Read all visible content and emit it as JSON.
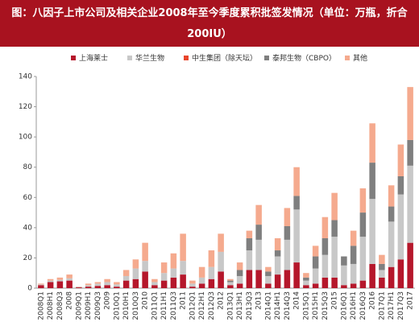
{
  "chart_data": {
    "type": "stacked_bar",
    "title": "图：八因子上市公司及相关企业2008年至今季度累积批签发情况（单位：万瓶，折合200IU）",
    "categories": [
      "2008Q1",
      "2008H1",
      "2008Q3",
      "2008",
      "2009Q1",
      "2009H1",
      "2009Q3",
      "2009",
      "2010Q1",
      "2010H1",
      "2010Q3",
      "2010",
      "2011Q1",
      "2011H1",
      "2011Q3",
      "2011",
      "2012Q1",
      "2012H1",
      "2012Q3",
      "2012",
      "2013Q1",
      "2013H1",
      "2013Q3",
      "2013",
      "2014Q1",
      "2014H1",
      "2014Q3",
      "2014",
      "2015Q1",
      "2015H1",
      "2015Q3",
      "2015",
      "2016Q1",
      "2016H1",
      "2016Q3",
      "2016",
      "2017Q1",
      "2017H1",
      "2017Q3",
      "2017"
    ],
    "series": [
      {
        "name": "上海莱士",
        "color": "#b5172b",
        "values": [
          2,
          4,
          4.5,
          5,
          0.5,
          1,
          1.5,
          2,
          1,
          5,
          6,
          11,
          2,
          5,
          7,
          9,
          1,
          3,
          6,
          11,
          2,
          3,
          12,
          12,
          3,
          9,
          12,
          17,
          2,
          3,
          7,
          7,
          2,
          3,
          5,
          16,
          7,
          14,
          19,
          30
        ]
      },
      {
        "name": "华兰生物",
        "color": "#c8c8c8",
        "values": [
          0.5,
          1,
          1,
          1.5,
          0.3,
          1,
          1.5,
          2,
          1.5,
          3,
          7,
          7,
          2,
          5,
          6,
          9,
          2,
          4,
          8,
          13,
          2,
          5,
          13,
          20,
          5,
          12,
          20,
          35,
          3,
          10,
          15,
          27,
          13,
          13,
          29,
          43,
          5,
          30,
          43,
          51
        ]
      },
      {
        "name": "中生集团（除天坛）",
        "color": "#e8452c",
        "values": [
          0,
          0,
          0,
          0,
          0,
          0,
          0,
          0,
          0,
          0,
          0,
          0,
          0,
          0,
          0,
          0,
          0,
          0,
          0,
          0,
          0,
          0,
          0,
          0,
          0,
          0,
          0,
          0,
          0,
          0,
          0,
          0,
          0,
          0,
          0,
          0,
          0,
          0,
          0,
          0
        ]
      },
      {
        "name": "泰邦生物（CBPO）",
        "color": "#7f7f7f",
        "values": [
          0,
          0,
          0,
          0,
          0,
          0,
          0,
          0,
          0,
          0,
          0,
          0,
          0,
          0,
          0,
          0,
          0,
          0,
          0,
          0,
          1,
          4,
          8,
          10,
          3,
          4,
          9,
          9,
          2,
          8,
          11,
          11,
          6,
          12,
          16,
          24,
          4,
          10,
          12,
          17
        ]
      },
      {
        "name": "其他",
        "color": "#f5aa8e",
        "values": [
          0.5,
          1,
          1.5,
          2.5,
          0.2,
          1,
          1,
          2,
          1.5,
          4,
          6,
          12,
          2,
          7,
          10,
          18,
          2,
          7,
          11,
          12,
          1,
          5,
          5,
          13,
          3,
          8,
          12,
          19,
          3,
          7,
          14,
          18,
          0,
          10,
          16,
          26,
          6,
          14,
          21,
          35
        ]
      }
    ],
    "ylim": [
      0,
      140
    ],
    "yticks": [
      0,
      20,
      40,
      60,
      80,
      100,
      120,
      140
    ],
    "grid": false
  }
}
